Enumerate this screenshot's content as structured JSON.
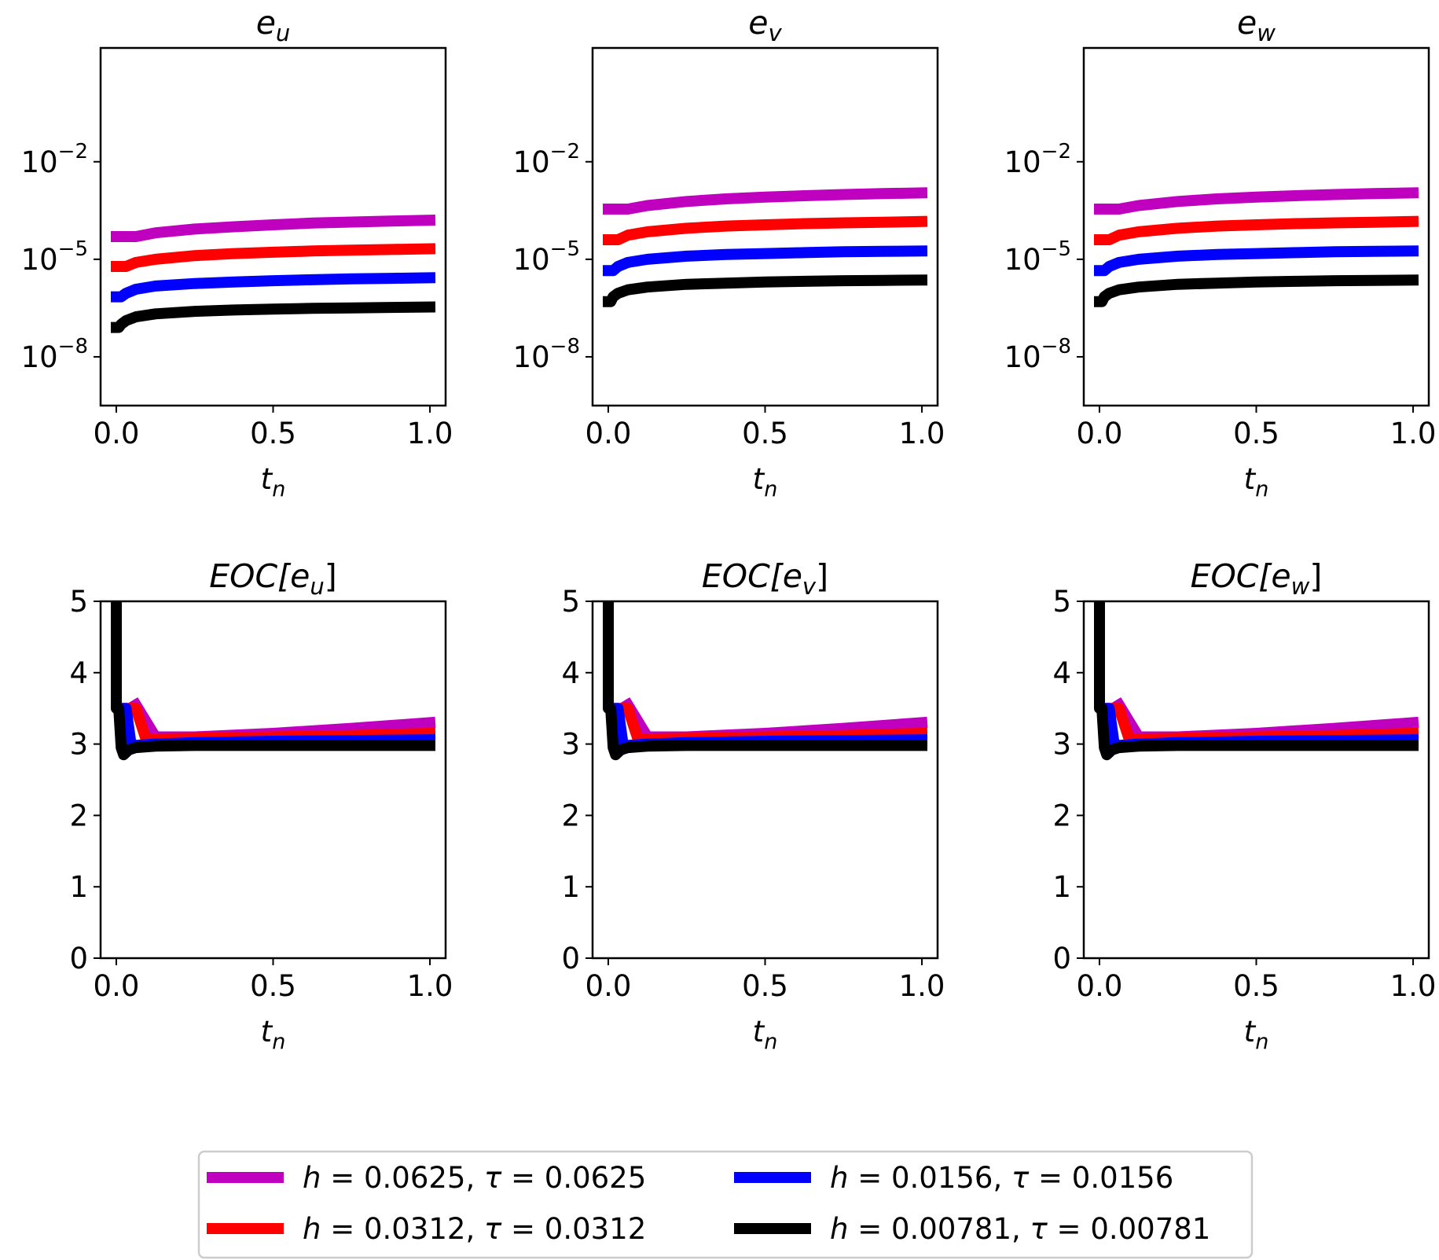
{
  "legend": {
    "entries": [
      {
        "h": "0.0625",
        "tau": "0.0625",
        "color": "#bf00bf"
      },
      {
        "h": "0.0312",
        "tau": "0.0312",
        "color": "#ff0000"
      },
      {
        "h": "0.0156",
        "tau": "0.0156",
        "color": "#0000ff"
      },
      {
        "h": "0.00781",
        "tau": "0.00781",
        "color": "#000000"
      }
    ]
  },
  "chart_data": [
    {
      "type": "line",
      "title": "e",
      "title_sub": "u",
      "xlabel": "t",
      "xlabel_sub": "n",
      "yscale": "log",
      "xlim": [
        -0.05,
        1.05
      ],
      "ylim_log10": [
        -9.5,
        1.5
      ],
      "xticks": [
        "0.0",
        "0.5",
        "1.0"
      ],
      "yticks_exp": [
        "-2",
        "-5",
        "-8"
      ],
      "series": [
        {
          "name": "h = 0.0625, τ = 0.0625",
          "x": [
            0,
            0.0625,
            0.125,
            0.25,
            0.375,
            0.5,
            0.625,
            0.75,
            0.875,
            1.0
          ],
          "y": [
            5e-05,
            5e-05,
            6.5e-05,
            8.5e-05,
            0.0001,
            0.000115,
            0.00013,
            0.00014,
            0.00015,
            0.00016
          ]
        },
        {
          "name": "h = 0.0312, τ = 0.0312",
          "x": [
            0,
            0.03125,
            0.0625,
            0.125,
            0.25,
            0.375,
            0.5,
            0.625,
            0.75,
            0.875,
            1.0
          ],
          "y": [
            6e-06,
            6e-06,
            8e-06,
            1e-05,
            1.3e-05,
            1.5e-05,
            1.65e-05,
            1.8e-05,
            1.9e-05,
            2e-05,
            2.1e-05
          ]
        },
        {
          "name": "h = 0.0156, τ = 0.0156",
          "x": [
            0,
            0.015625,
            0.03125,
            0.0625,
            0.125,
            0.25,
            0.375,
            0.5,
            0.625,
            0.75,
            0.875,
            1.0
          ],
          "y": [
            7e-07,
            7e-07,
            9e-07,
            1.2e-06,
            1.5e-06,
            1.8e-06,
            2e-06,
            2.2e-06,
            2.35e-06,
            2.5e-06,
            2.6e-06,
            2.7e-06
          ]
        },
        {
          "name": "h = 0.00781, τ = 0.00781",
          "x": [
            0,
            0.0078,
            0.015625,
            0.03125,
            0.0625,
            0.125,
            0.25,
            0.375,
            0.5,
            0.625,
            0.75,
            0.875,
            1.0
          ],
          "y": [
            8e-08,
            8e-08,
            1e-07,
            1.3e-07,
            1.7e-07,
            2.1e-07,
            2.5e-07,
            2.75e-07,
            2.95e-07,
            3.1e-07,
            3.2e-07,
            3.3e-07,
            3.4e-07
          ]
        }
      ]
    },
    {
      "type": "line",
      "title": "e",
      "title_sub": "v",
      "xlabel": "t",
      "xlabel_sub": "n",
      "yscale": "log",
      "xlim": [
        -0.05,
        1.05
      ],
      "ylim_log10": [
        -9.5,
        1.5
      ],
      "xticks": [
        "0.0",
        "0.5",
        "1.0"
      ],
      "yticks_exp": [
        "-2",
        "-5",
        "-8"
      ],
      "series": [
        {
          "name": "h = 0.0625, τ = 0.0625",
          "x": [
            0,
            0.0625,
            0.125,
            0.25,
            0.375,
            0.5,
            0.625,
            0.75,
            0.875,
            1.0
          ],
          "y": [
            0.00035,
            0.00035,
            0.00045,
            0.0006,
            0.00072,
            0.00082,
            0.0009,
            0.00098,
            0.00105,
            0.0011
          ]
        },
        {
          "name": "h = 0.0312, τ = 0.0312",
          "x": [
            0,
            0.03125,
            0.0625,
            0.125,
            0.25,
            0.375,
            0.5,
            0.625,
            0.75,
            0.875,
            1.0
          ],
          "y": [
            4e-05,
            4e-05,
            5.5e-05,
            7e-05,
            9e-05,
            0.000105,
            0.000115,
            0.000125,
            0.000132,
            0.000138,
            0.000145
          ]
        },
        {
          "name": "h = 0.0156, τ = 0.0156",
          "x": [
            0,
            0.015625,
            0.03125,
            0.0625,
            0.125,
            0.25,
            0.375,
            0.5,
            0.625,
            0.75,
            0.875,
            1.0
          ],
          "y": [
            4.5e-06,
            4.5e-06,
            6e-06,
            8e-06,
            1e-05,
            1.25e-05,
            1.4e-05,
            1.5e-05,
            1.6e-05,
            1.7e-05,
            1.75e-05,
            1.8e-05
          ]
        },
        {
          "name": "h = 0.00781, τ = 0.00781",
          "x": [
            0,
            0.0078,
            0.015625,
            0.03125,
            0.0625,
            0.125,
            0.25,
            0.375,
            0.5,
            0.625,
            0.75,
            0.875,
            1.0
          ],
          "y": [
            5e-07,
            5e-07,
            7e-07,
            9e-07,
            1.15e-06,
            1.4e-06,
            1.7e-06,
            1.85e-06,
            2e-06,
            2.1e-06,
            2.2e-06,
            2.25e-06,
            2.3e-06
          ]
        }
      ]
    },
    {
      "type": "line",
      "title": "e",
      "title_sub": "w",
      "xlabel": "t",
      "xlabel_sub": "n",
      "yscale": "log",
      "xlim": [
        -0.05,
        1.05
      ],
      "ylim_log10": [
        -9.5,
        1.5
      ],
      "xticks": [
        "0.0",
        "0.5",
        "1.0"
      ],
      "yticks_exp": [
        "-2",
        "-5",
        "-8"
      ],
      "series": [
        {
          "name": "h = 0.0625, τ = 0.0625",
          "x": [
            0,
            0.0625,
            0.125,
            0.25,
            0.375,
            0.5,
            0.625,
            0.75,
            0.875,
            1.0
          ],
          "y": [
            0.00035,
            0.00035,
            0.00045,
            0.0006,
            0.00072,
            0.00082,
            0.0009,
            0.00098,
            0.00105,
            0.0011
          ]
        },
        {
          "name": "h = 0.0312, τ = 0.0312",
          "x": [
            0,
            0.03125,
            0.0625,
            0.125,
            0.25,
            0.375,
            0.5,
            0.625,
            0.75,
            0.875,
            1.0
          ],
          "y": [
            4e-05,
            4e-05,
            5.5e-05,
            7e-05,
            9e-05,
            0.000105,
            0.000115,
            0.000125,
            0.000132,
            0.000138,
            0.000145
          ]
        },
        {
          "name": "h = 0.0156, τ = 0.0156",
          "x": [
            0,
            0.015625,
            0.03125,
            0.0625,
            0.125,
            0.25,
            0.375,
            0.5,
            0.625,
            0.75,
            0.875,
            1.0
          ],
          "y": [
            4.5e-06,
            4.5e-06,
            6e-06,
            8e-06,
            1e-05,
            1.25e-05,
            1.4e-05,
            1.5e-05,
            1.6e-05,
            1.7e-05,
            1.75e-05,
            1.8e-05
          ]
        },
        {
          "name": "h = 0.00781, τ = 0.00781",
          "x": [
            0,
            0.0078,
            0.015625,
            0.03125,
            0.0625,
            0.125,
            0.25,
            0.375,
            0.5,
            0.625,
            0.75,
            0.875,
            1.0
          ],
          "y": [
            5e-07,
            5e-07,
            7e-07,
            9e-07,
            1.15e-06,
            1.4e-06,
            1.7e-06,
            1.85e-06,
            2e-06,
            2.1e-06,
            2.2e-06,
            2.25e-06,
            2.3e-06
          ]
        }
      ]
    },
    {
      "type": "line",
      "title": "EOC[e",
      "title_sub": "u",
      "title_end": "]",
      "xlabel": "t",
      "xlabel_sub": "n",
      "yscale": "linear",
      "xlim": [
        -0.05,
        1.05
      ],
      "ylim": [
        0,
        5
      ],
      "xticks": [
        "0.0",
        "0.5",
        "1.0"
      ],
      "yticks": [
        "0",
        "1",
        "2",
        "3",
        "4",
        "5"
      ],
      "series": [
        {
          "name": "h = 0.0625, τ = 0.0625",
          "x": [
            0.0625,
            0.125,
            0.25,
            0.5,
            0.75,
            1.0
          ],
          "y": [
            3.55,
            3.1,
            3.1,
            3.15,
            3.22,
            3.3
          ]
        },
        {
          "name": "h = 0.0312, τ = 0.0312",
          "x": [
            0.03125,
            0.0625,
            0.09375,
            0.125,
            0.25,
            0.5,
            0.75,
            1.0
          ],
          "y": [
            3.5,
            3.5,
            3.08,
            3.07,
            3.08,
            3.1,
            3.12,
            3.15
          ]
        },
        {
          "name": "h = 0.0156, τ = 0.0156",
          "x": [
            0.015625,
            0.03125,
            0.046875,
            0.0625,
            0.125,
            0.25,
            0.5,
            0.75,
            1.0
          ],
          "y": [
            3.5,
            3.5,
            3.0,
            2.98,
            3.0,
            3.02,
            3.04,
            3.05,
            3.06
          ]
        },
        {
          "name": "h = 0.00781, τ = 0.00781",
          "x": [
            0.0,
            0.0,
            0.0078,
            0.0156,
            0.0234,
            0.04,
            0.0625,
            0.125,
            0.25,
            0.5,
            0.75,
            1.0
          ],
          "y": [
            5.0,
            3.5,
            3.5,
            2.95,
            2.85,
            2.92,
            2.95,
            2.97,
            2.98,
            2.98,
            2.98,
            2.98
          ]
        }
      ]
    },
    {
      "type": "line",
      "title": "EOC[e",
      "title_sub": "v",
      "title_end": "]",
      "xlabel": "t",
      "xlabel_sub": "n",
      "yscale": "linear",
      "xlim": [
        -0.05,
        1.05
      ],
      "ylim": [
        0,
        5
      ],
      "xticks": [
        "0.0",
        "0.5",
        "1.0"
      ],
      "yticks": [
        "0",
        "1",
        "2",
        "3",
        "4",
        "5"
      ],
      "series": [
        {
          "name": "h = 0.0625, τ = 0.0625",
          "x": [
            0.0625,
            0.125,
            0.25,
            0.5,
            0.75,
            1.0
          ],
          "y": [
            3.55,
            3.1,
            3.1,
            3.15,
            3.22,
            3.3
          ]
        },
        {
          "name": "h = 0.0312, τ = 0.0312",
          "x": [
            0.03125,
            0.0625,
            0.09375,
            0.125,
            0.25,
            0.5,
            0.75,
            1.0
          ],
          "y": [
            3.5,
            3.5,
            3.08,
            3.07,
            3.08,
            3.1,
            3.12,
            3.15
          ]
        },
        {
          "name": "h = 0.0156, τ = 0.0156",
          "x": [
            0.015625,
            0.03125,
            0.046875,
            0.0625,
            0.125,
            0.25,
            0.5,
            0.75,
            1.0
          ],
          "y": [
            3.5,
            3.5,
            3.0,
            2.98,
            3.0,
            3.02,
            3.04,
            3.05,
            3.06
          ]
        },
        {
          "name": "h = 0.00781, τ = 0.00781",
          "x": [
            0.0,
            0.0,
            0.0078,
            0.0156,
            0.0234,
            0.04,
            0.0625,
            0.125,
            0.25,
            0.5,
            0.75,
            1.0
          ],
          "y": [
            5.0,
            3.5,
            3.5,
            2.95,
            2.85,
            2.92,
            2.95,
            2.97,
            2.98,
            2.98,
            2.98,
            2.98
          ]
        }
      ]
    },
    {
      "type": "line",
      "title": "EOC[e",
      "title_sub": "w",
      "title_end": "]",
      "xlabel": "t",
      "xlabel_sub": "n",
      "yscale": "linear",
      "xlim": [
        -0.05,
        1.05
      ],
      "ylim": [
        0,
        5
      ],
      "xticks": [
        "0.0",
        "0.5",
        "1.0"
      ],
      "yticks": [
        "0",
        "1",
        "2",
        "3",
        "4",
        "5"
      ],
      "series": [
        {
          "name": "h = 0.0625, τ = 0.0625",
          "x": [
            0.0625,
            0.125,
            0.25,
            0.5,
            0.75,
            1.0
          ],
          "y": [
            3.55,
            3.1,
            3.1,
            3.15,
            3.22,
            3.3
          ]
        },
        {
          "name": "h = 0.0312, τ = 0.0312",
          "x": [
            0.03125,
            0.0625,
            0.09375,
            0.125,
            0.25,
            0.5,
            0.75,
            1.0
          ],
          "y": [
            3.5,
            3.5,
            3.08,
            3.07,
            3.08,
            3.1,
            3.12,
            3.15
          ]
        },
        {
          "name": "h = 0.0156, τ = 0.0156",
          "x": [
            0.015625,
            0.03125,
            0.046875,
            0.0625,
            0.125,
            0.25,
            0.5,
            0.75,
            1.0
          ],
          "y": [
            3.5,
            3.5,
            3.0,
            2.98,
            3.0,
            3.02,
            3.04,
            3.05,
            3.06
          ]
        },
        {
          "name": "h = 0.00781, τ = 0.00781",
          "x": [
            0.0,
            0.0,
            0.0078,
            0.0156,
            0.0234,
            0.04,
            0.0625,
            0.125,
            0.25,
            0.5,
            0.75,
            1.0
          ],
          "y": [
            5.0,
            3.5,
            3.5,
            2.95,
            2.85,
            2.92,
            2.95,
            2.97,
            2.98,
            2.98,
            2.98,
            2.98
          ]
        }
      ]
    }
  ]
}
